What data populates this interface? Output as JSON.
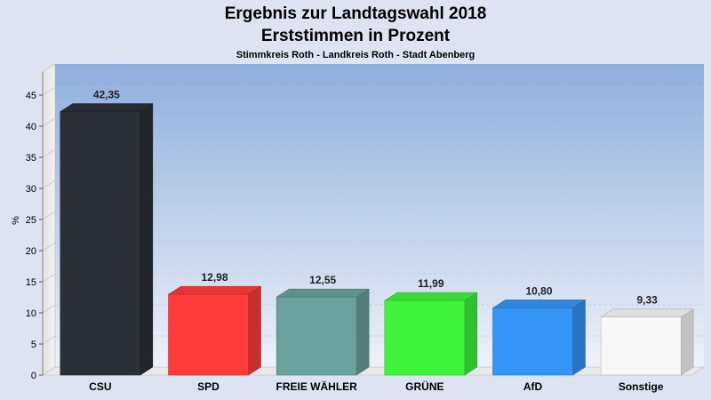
{
  "chart_data": {
    "type": "bar",
    "title": "Ergebnis zur Landtagswahl 2018",
    "subtitle": "Erststimmen in Prozent",
    "caption": "Stimmkreis Roth - Landkreis Roth - Stadt Abenberg",
    "ylabel": "%",
    "xlabel": "",
    "ylim": [
      0,
      50
    ],
    "yticks": [
      0,
      5,
      10,
      15,
      20,
      25,
      30,
      35,
      40,
      45
    ],
    "categories": [
      "CSU",
      "SPD",
      "FREIE WÄHLER",
      "GRÜNE",
      "AfD",
      "Sonstige"
    ],
    "values": [
      42.35,
      12.98,
      12.55,
      11.99,
      10.8,
      9.33
    ],
    "value_labels": [
      "42,35",
      "12,98",
      "12,55",
      "11,99",
      "10,80",
      "9,33"
    ],
    "colors": [
      "#2a2f38",
      "#ff3b3b",
      "#6aa19c",
      "#3ff33c",
      "#3595f6",
      "#f8f8f8"
    ],
    "grid": true,
    "legend": "none"
  }
}
